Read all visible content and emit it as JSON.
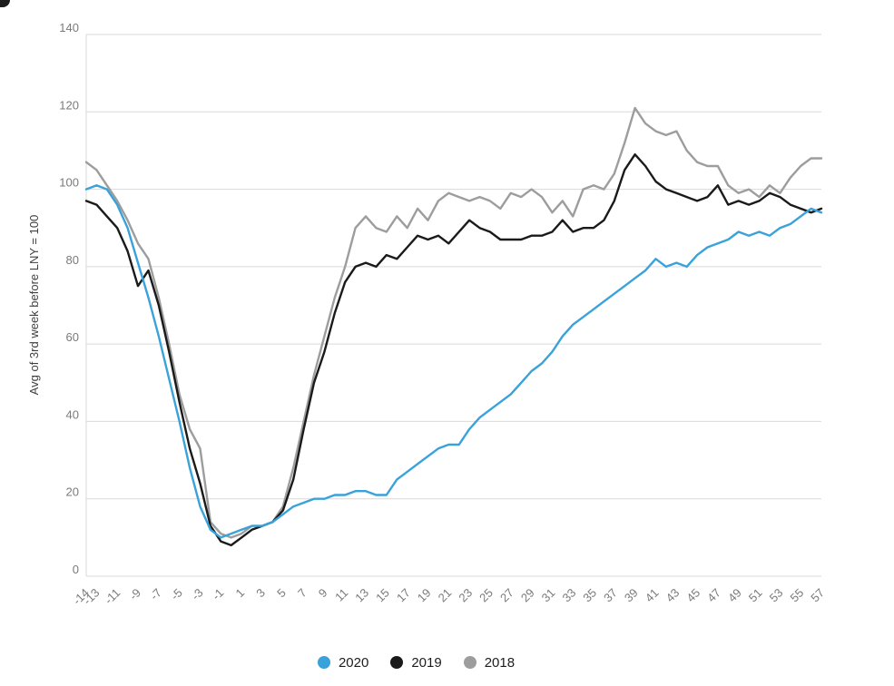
{
  "chart_data": {
    "type": "line",
    "title": "",
    "y_axis_title": "Avg of 3rd week before LNY = 100",
    "ylim": [
      0,
      140
    ],
    "yticks": [
      0,
      20,
      40,
      60,
      80,
      100,
      120,
      140
    ],
    "grid": "horizontal",
    "legend_position": "bottom-center",
    "xtick_labels": [
      "-14",
      "-13",
      "-11",
      "-9",
      "-7",
      "-5",
      "-3",
      "-1",
      "1",
      "3",
      "5",
      "7",
      "9",
      "11",
      "13",
      "15",
      "17",
      "19",
      "21",
      "23",
      "25",
      "27",
      "29",
      "31",
      "33",
      "35",
      "37",
      "39",
      "41",
      "43",
      "45",
      "47",
      "49",
      "51",
      "53",
      "55",
      "57"
    ],
    "x": [
      -14,
      -13,
      -12,
      -11,
      -10,
      -9,
      -8,
      -7,
      -6,
      -5,
      -4,
      -3,
      -2,
      -1,
      0,
      1,
      2,
      3,
      4,
      5,
      6,
      7,
      8,
      9,
      10,
      11,
      12,
      13,
      14,
      15,
      16,
      17,
      18,
      19,
      20,
      21,
      22,
      23,
      24,
      25,
      26,
      27,
      28,
      29,
      30,
      31,
      32,
      33,
      34,
      35,
      36,
      37,
      38,
      39,
      40,
      41,
      42,
      43,
      44,
      45,
      46,
      47,
      48,
      49,
      50,
      51,
      52,
      53,
      54,
      55,
      56,
      57
    ],
    "series": [
      {
        "name": "2020",
        "color": "#3aa2da",
        "values": [
          100,
          101,
          100,
          96,
          90,
          81,
          72,
          62,
          51,
          40,
          28,
          18,
          12,
          10,
          11,
          12,
          13,
          13,
          14,
          16,
          18,
          19,
          20,
          20,
          21,
          21,
          22,
          22,
          21,
          21,
          25,
          27,
          29,
          31,
          33,
          34,
          34,
          38,
          41,
          43,
          45,
          47,
          50,
          53,
          55,
          58,
          62,
          65,
          67,
          69,
          71,
          73,
          75,
          77,
          79,
          82,
          80,
          81,
          80,
          83,
          85,
          86,
          87,
          89,
          88,
          89,
          88,
          90,
          91,
          93,
          95,
          94
        ]
      },
      {
        "name": "2019",
        "color": "#1a1a1a",
        "values": [
          97,
          96,
          93,
          90,
          84,
          75,
          79,
          70,
          58,
          45,
          33,
          24,
          13,
          9,
          8,
          10,
          12,
          13,
          14,
          17,
          25,
          38,
          50,
          58,
          68,
          76,
          80,
          81,
          80,
          83,
          82,
          85,
          88,
          87,
          88,
          86,
          89,
          92,
          90,
          89,
          87,
          87,
          87,
          88,
          88,
          89,
          92,
          89,
          90,
          90,
          92,
          97,
          105,
          109,
          106,
          102,
          100,
          99,
          98,
          97,
          98,
          101,
          96,
          97,
          96,
          97,
          99,
          98,
          96,
          95,
          94,
          95
        ]
      },
      {
        "name": "2018",
        "color": "#9d9d9d",
        "values": [
          107,
          105,
          101,
          97,
          92,
          86,
          82,
          72,
          60,
          47,
          38,
          33,
          14,
          11,
          10,
          11,
          13,
          13,
          14,
          18,
          28,
          40,
          52,
          62,
          72,
          80,
          90,
          93,
          90,
          89,
          93,
          90,
          95,
          92,
          97,
          99,
          98,
          97,
          98,
          97,
          95,
          99,
          98,
          100,
          98,
          94,
          97,
          93,
          100,
          101,
          100,
          104,
          112,
          121,
          117,
          115,
          114,
          115,
          110,
          107,
          106,
          106,
          101,
          99,
          100,
          98,
          101,
          99,
          103,
          106,
          108,
          108
        ]
      }
    ]
  }
}
